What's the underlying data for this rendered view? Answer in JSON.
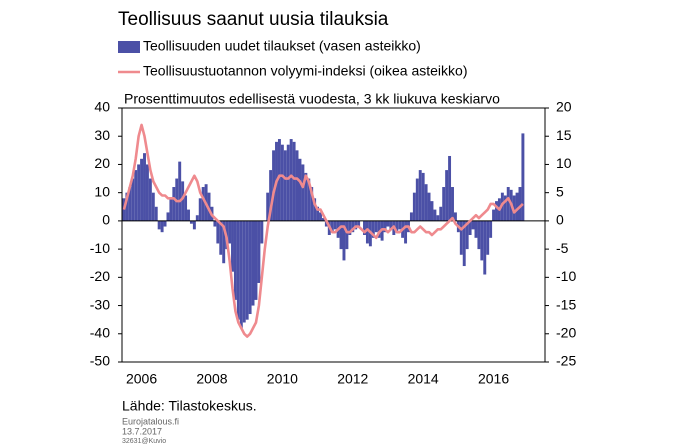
{
  "chart_data": {
    "type": "bar-line",
    "title": "Teollisuus saanut uusia tilauksia",
    "subtitle": "Prosenttimuutos edellisestä vuodesta, 3 kk liukuva keskiarvo",
    "source": "Lähde: Tilastokeskus.",
    "footer": [
      "Eurojatalous.fi",
      "13.7.2017",
      "32631@Kuvio"
    ],
    "categories": [
      null,
      null,
      null,
      null,
      null,
      null,
      "2006",
      null,
      null,
      null,
      null,
      null,
      null,
      null,
      null,
      null,
      null,
      null,
      null,
      null,
      null,
      null,
      null,
      null,
      null,
      null,
      null,
      null,
      null,
      null,
      "2008",
      null,
      null,
      null,
      null,
      null,
      null,
      null,
      null,
      null,
      null,
      null,
      null,
      null,
      null,
      null,
      null,
      null,
      null,
      null,
      null,
      null,
      null,
      null,
      "2010",
      null,
      null,
      null,
      null,
      null,
      null,
      null,
      null,
      null,
      null,
      null,
      null,
      null,
      null,
      null,
      null,
      null,
      null,
      null,
      null,
      null,
      null,
      null,
      "2012",
      null,
      null,
      null,
      null,
      null,
      null,
      null,
      null,
      null,
      null,
      null,
      null,
      null,
      null,
      null,
      null,
      null,
      null,
      null,
      null,
      null,
      null,
      null,
      "2014",
      null,
      null,
      null,
      null,
      null,
      null,
      null,
      null,
      null,
      null,
      null,
      null,
      null,
      null,
      null,
      null,
      null,
      null,
      null,
      null,
      null,
      null,
      null,
      "2016",
      null,
      null,
      null,
      null,
      null,
      null,
      null,
      null,
      null,
      null
    ],
    "series": [
      {
        "name": "Teollisuuden uudet tilaukset (vasen asteikko)",
        "color": "#4b50a6",
        "kind": "bar",
        "axis": "y",
        "values": [
          8,
          10,
          12,
          15,
          18,
          20,
          22,
          24,
          20,
          15,
          10,
          5,
          -3,
          -4,
          -2,
          3,
          8,
          12,
          15,
          21,
          14,
          9,
          4,
          -1,
          -3,
          2,
          8,
          12,
          13,
          10,
          5,
          -2,
          -8,
          -12,
          -15,
          -10,
          -8,
          -18,
          -28,
          -35,
          -38,
          -36,
          -35,
          -33,
          -30,
          -28,
          -22,
          -8,
          0,
          10,
          18,
          25,
          28,
          29,
          27,
          25,
          27,
          29,
          28,
          25,
          22,
          20,
          17,
          15,
          12,
          8,
          5,
          3,
          1,
          -2,
          -5,
          -4,
          -3,
          -6,
          -10,
          -14,
          -10,
          -5,
          -4,
          -3,
          -2,
          0,
          -5,
          -8,
          -9,
          -6,
          -4,
          -6,
          -7,
          -4,
          -2,
          -3,
          -5,
          -4,
          -3,
          -6,
          -8,
          -4,
          3,
          10,
          15,
          18,
          17,
          13,
          10,
          7,
          4,
          2,
          5,
          12,
          18,
          23,
          12,
          3,
          -4,
          -12,
          -16,
          -10,
          -5,
          -3,
          -6,
          -10,
          -14,
          -19,
          -12,
          -6,
          4,
          7,
          8,
          10,
          9,
          12,
          11,
          9,
          10,
          12,
          31
        ]
      },
      {
        "name": "Teollisuustuotannon volyymi-indeksi (oikea asteikko)",
        "color": "#ef8a8e",
        "kind": "line",
        "axis": "y2",
        "values": [
          2,
          4,
          6,
          8,
          11,
          15,
          17,
          15,
          12,
          9,
          7,
          6,
          5,
          4.5,
          4.5,
          4,
          4,
          4,
          3.5,
          3.5,
          4,
          5,
          6,
          7,
          8,
          7,
          5,
          4,
          3,
          2,
          1,
          0.5,
          0,
          -0.5,
          -1,
          -3,
          -7,
          -12,
          -16,
          -18,
          -19,
          -20,
          -20.5,
          -20,
          -19,
          -18,
          -15,
          -10,
          -5,
          -1,
          2,
          5,
          7,
          8,
          8,
          7.5,
          7.5,
          8,
          7.5,
          7.5,
          7,
          6,
          8,
          7,
          5,
          3,
          2,
          2,
          1,
          0,
          -1,
          -2,
          -2,
          -1.5,
          -1,
          -1,
          -2,
          -2,
          -1.5,
          -1,
          -1,
          -1.5,
          -2,
          -1.5,
          -2,
          -2.5,
          -3,
          -2,
          -1.5,
          -1.5,
          -2,
          -1.5,
          -1,
          -2,
          -2,
          -1.5,
          -1,
          -1,
          -2,
          -2,
          -1.5,
          -1,
          -1.5,
          -2,
          -2,
          -2.5,
          -2,
          -1.5,
          -1.5,
          -1,
          -0.5,
          0,
          0.5,
          -0.5,
          -1,
          -1.5,
          -1,
          -0.5,
          0,
          0.5,
          1,
          0.5,
          1,
          1.5,
          2,
          3,
          3,
          2.5,
          2,
          3,
          3.5,
          4,
          3,
          1.5,
          2,
          2.5,
          3
        ]
      }
    ],
    "ylim": [
      -50,
      40
    ],
    "yticks": [
      -50,
      -40,
      -30,
      -20,
      -10,
      0,
      10,
      20,
      30,
      40
    ],
    "y2lim": [
      -25,
      20
    ],
    "y2ticks": [
      -25,
      -20,
      -15,
      -10,
      -5,
      0,
      5,
      10,
      15,
      20
    ]
  }
}
